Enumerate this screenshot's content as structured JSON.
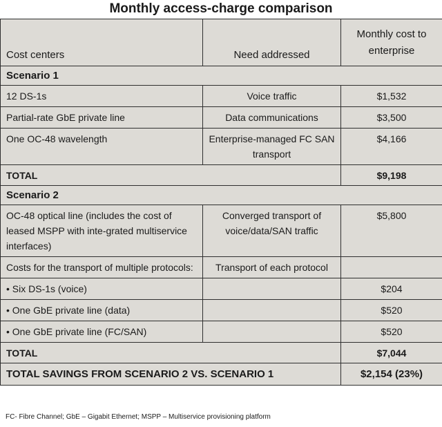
{
  "title": "Monthly access-charge comparison",
  "headers": {
    "cost_centers": "Cost centers",
    "need_addressed": "Need addressed",
    "monthly_cost": "Monthly cost to enterprise"
  },
  "scenario1": {
    "label": "Scenario 1",
    "rows": [
      {
        "cost_center": "12 DS-1s",
        "need": "Voice traffic",
        "cost": "$1,532"
      },
      {
        "cost_center": "Partial-rate GbE private line",
        "need": "Data communications",
        "cost": "$3,500"
      },
      {
        "cost_center": "One OC-48 wavelength",
        "need": "Enterprise-managed FC SAN transport",
        "cost": "$4,166"
      }
    ],
    "total_label": "TOTAL",
    "total_value": "$9,198"
  },
  "scenario2": {
    "label": "Scenario 2",
    "rows": [
      {
        "cost_center": "OC-48 optical line (includes the cost of leased MSPP with inte-grated multiservice interfaces)",
        "need": "Converged transport of voice/data/SAN traffic",
        "cost": "$5,800"
      },
      {
        "cost_center": "Costs for the transport of multiple protocols:",
        "need": "Transport of each protocol",
        "cost": ""
      },
      {
        "cost_center": "• Six DS-1s (voice)",
        "need": "",
        "cost": "$204"
      },
      {
        "cost_center": "• One GbE private line (data)",
        "need": "",
        "cost": "$520"
      },
      {
        "cost_center": "• One GbE private line (FC/SAN)",
        "need": "",
        "cost": "$520"
      }
    ],
    "total_label": "TOTAL",
    "total_value": "$7,044"
  },
  "savings": {
    "label": "TOTAL SAVINGS FROM SCENARIO 2 VS. SCENARIO 1",
    "value": "$2,154 (23%)"
  },
  "footnote": "FC- Fibre Channel; GbE – Gigabit Ethernet; MSPP – Multiservice provisioning platform"
}
